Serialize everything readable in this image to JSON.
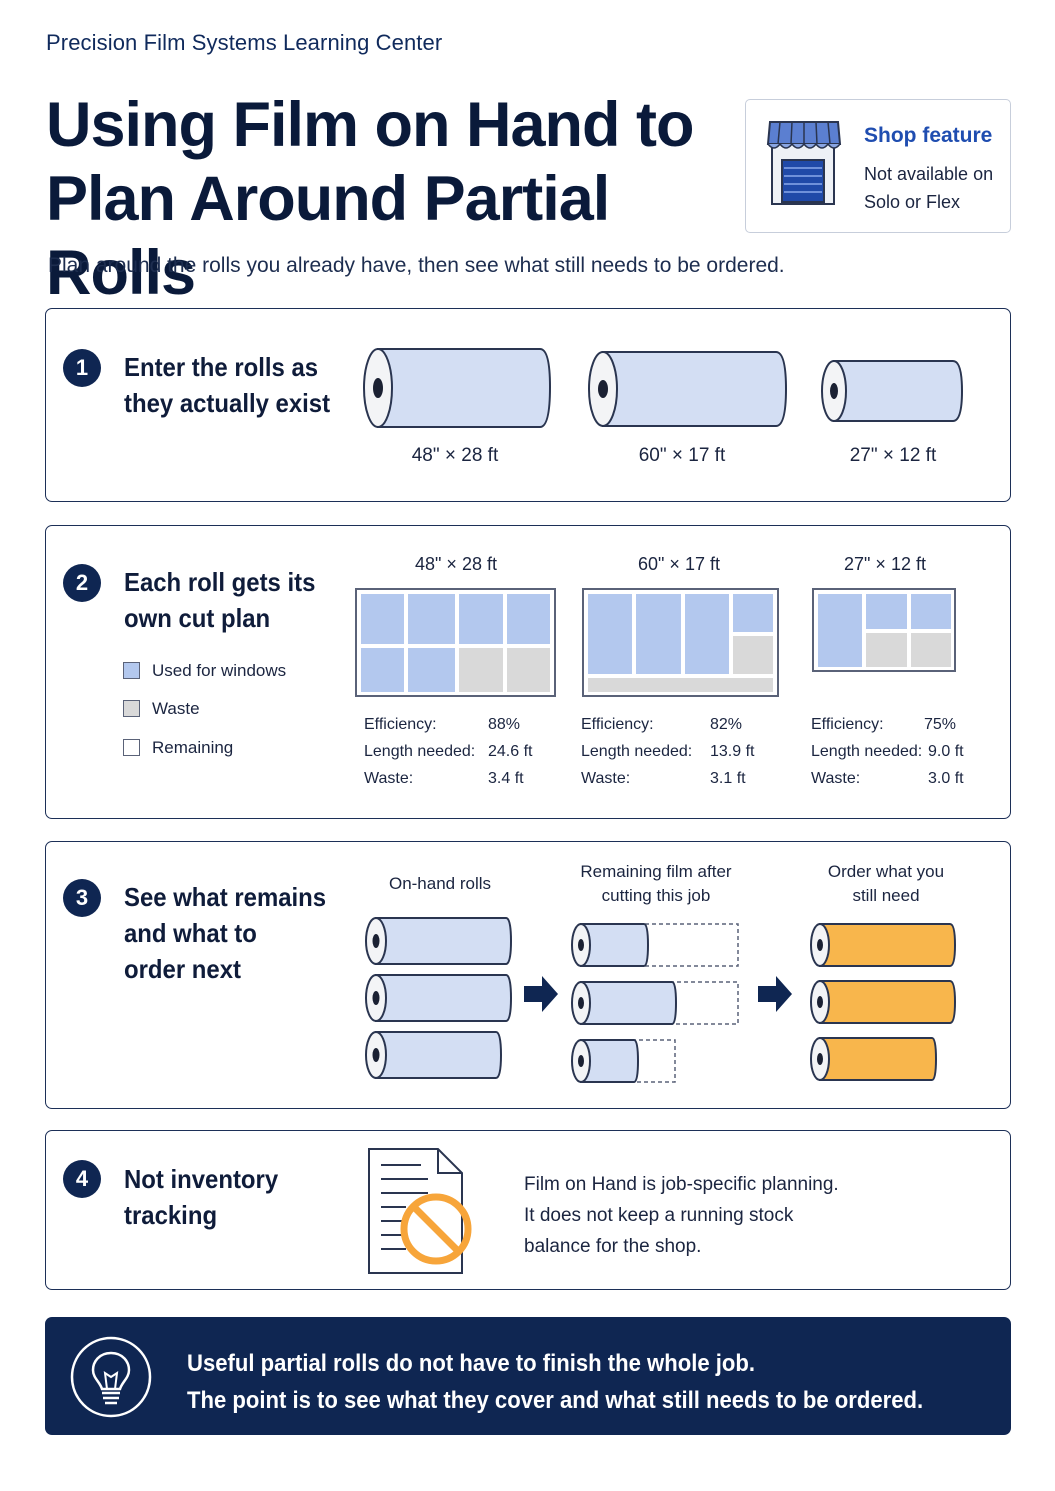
{
  "header": {
    "kicker": "Precision Film Systems Learning Center",
    "title_line1": "Using Film on Hand to",
    "title_line2": "Plan Around Partial Rolls",
    "subtitle": "Plan around the rolls you already have, then see what still needs to be ordered."
  },
  "shop_card": {
    "title": "Shop feature",
    "note_line1": "Not available on",
    "note_line2": "Solo or Flex",
    "icon": "storefront-icon"
  },
  "colors": {
    "navy": "#0f2652",
    "film_blue": "#d3def3",
    "cut_blue": "#b3c8ee",
    "waste_gray": "#d9d9d9",
    "order_orange": "#f8b64c",
    "warn_orange": "#f7a53a"
  },
  "step1": {
    "number": "1",
    "heading_line1": "Enter the rolls as",
    "heading_line2": "they actually exist",
    "rolls": [
      "48\" × 28 ft",
      "60\" × 17 ft",
      "27\" × 12 ft"
    ]
  },
  "step2": {
    "number": "2",
    "heading_line1": "Each roll gets its",
    "heading_line2": "own cut plan",
    "legend": [
      "Used for windows",
      "Waste",
      "Remaining"
    ],
    "plans": [
      {
        "roll": "48\" × 28 ft",
        "efficiency_label": "Efficiency:",
        "efficiency": "88%",
        "length_label": "Length needed:",
        "length": "24.6 ft",
        "waste_label": "Waste:",
        "waste": "3.4 ft"
      },
      {
        "roll": "60\" × 17 ft",
        "efficiency_label": "Efficiency:",
        "efficiency": "82%",
        "length_label": "Length needed:",
        "length": "13.9 ft",
        "waste_label": "Waste:",
        "waste": "3.1 ft"
      },
      {
        "roll": "27\" × 12 ft",
        "efficiency_label": "Efficiency:",
        "efficiency": "75%",
        "length_label": "Length needed:",
        "length": "9.0 ft",
        "waste_label": "Waste:",
        "waste": "3.0 ft"
      }
    ]
  },
  "step3": {
    "number": "3",
    "heading_line1": "See what remains",
    "heading_line2": "and what to",
    "heading_line3": "order next",
    "col1": "On-hand rolls",
    "col2_line1": "Remaining film after",
    "col2_line2": "cutting this job",
    "col3_line1": "Order what you",
    "col3_line2": "still need"
  },
  "step4": {
    "number": "4",
    "heading_line1": "Not inventory",
    "heading_line2": "tracking",
    "text_line1": "Film on Hand is job-specific planning.",
    "text_line2": "It does not keep a running stock",
    "text_line3": "balance for the shop.",
    "icon": "document-prohibited-icon"
  },
  "banner": {
    "line1": "Useful partial rolls do not have to finish the whole job.",
    "line2": "The point is to see what they cover and what still needs to be ordered.",
    "icon": "lightbulb-icon"
  }
}
